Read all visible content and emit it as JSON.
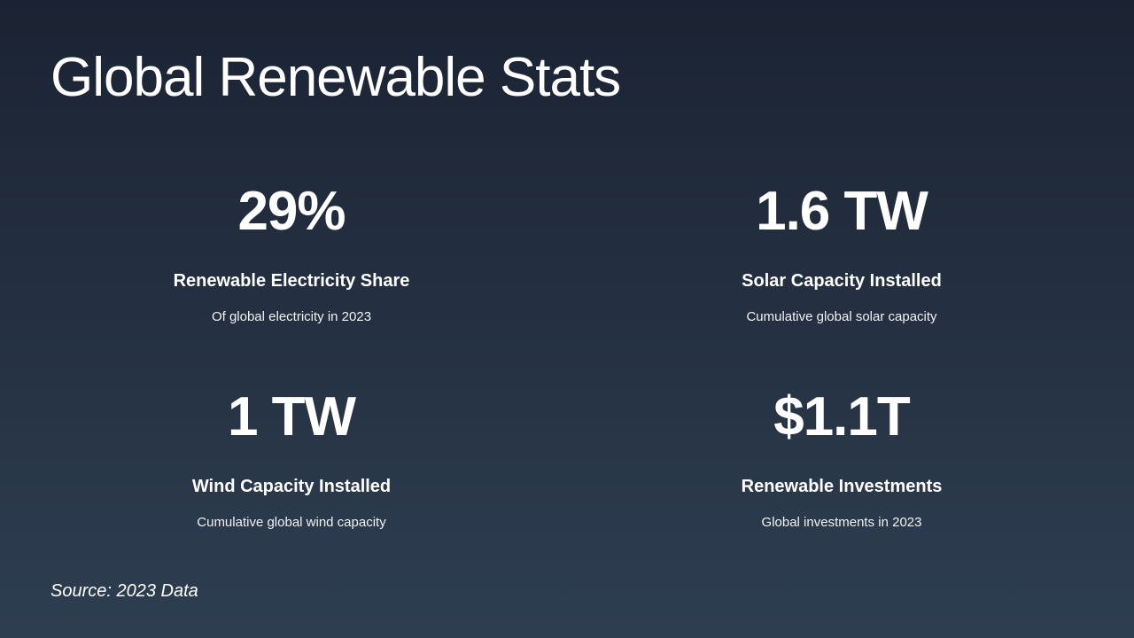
{
  "title": "Global Renewable Stats",
  "stats": [
    {
      "value": "29%",
      "label": "Renewable Electricity Share",
      "description": "Of global electricity in 2023"
    },
    {
      "value": "1.6 TW",
      "label": "Solar Capacity Installed",
      "description": "Cumulative global solar capacity"
    },
    {
      "value": "1 TW",
      "label": "Wind Capacity Installed",
      "description": "Cumulative global wind capacity"
    },
    {
      "value": "$1.1T",
      "label": "Renewable Investments",
      "description": "Global investments in 2023"
    }
  ],
  "source": "Source: 2023 Data",
  "colors": {
    "background_top": "#1b2333",
    "background_bottom": "#2e3e51",
    "text": "#ffffff"
  }
}
